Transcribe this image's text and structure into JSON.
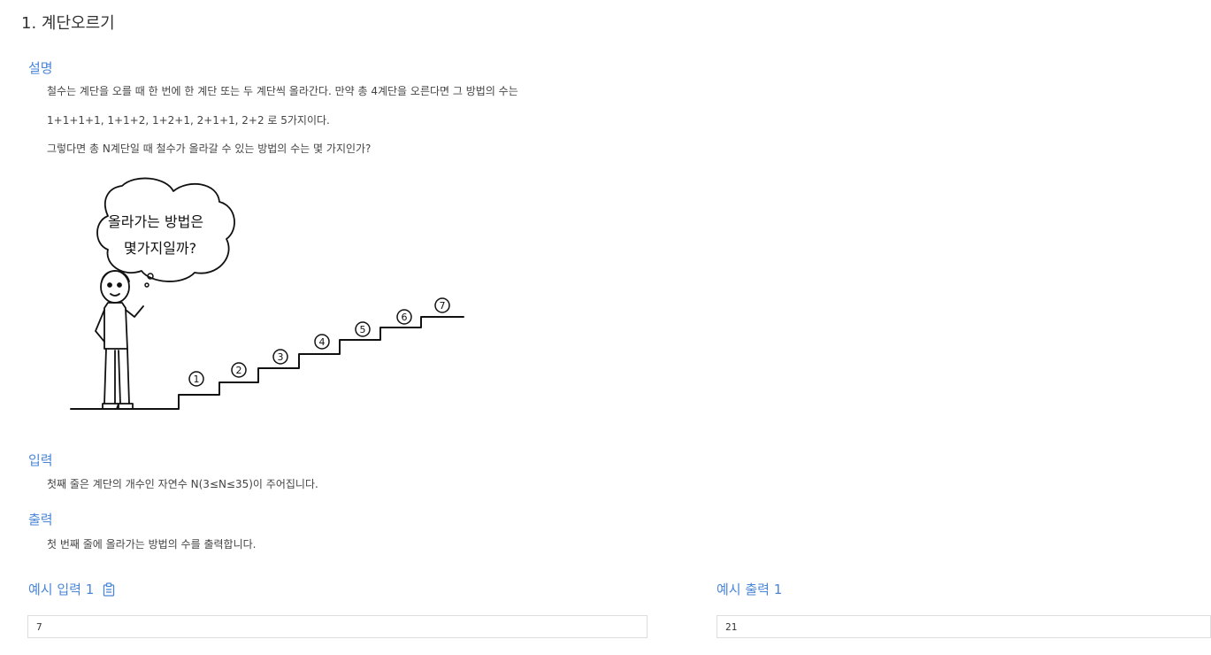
{
  "problem": {
    "title": "1. 계단오르기"
  },
  "description": {
    "heading": "설명",
    "lines": [
      "철수는 계단을 오를 때 한 번에 한 계단 또는 두 계단씩 올라간다. 만약 총 4계단을 오른다면 그 방법의 수는",
      "1+1+1+1, 1+1+2, 1+2+1, 2+1+1, 2+2 로 5가지이다.",
      "그렇다면 총 N계단일 때 철수가 올라갈 수 있는 방법의 수는 몇 가지인가?"
    ],
    "illustration": {
      "speech_bubble_line1": "올라가는 방법은",
      "speech_bubble_line2": "몇가지일까?",
      "step_numbers": [
        "1",
        "2",
        "3",
        "4",
        "5",
        "6",
        "7"
      ]
    }
  },
  "input": {
    "heading": "입력",
    "text": "첫째 줄은 계단의 개수인 자연수 N(3≤N≤35)이 주어집니다."
  },
  "output": {
    "heading": "출력",
    "text": "첫 번째 줄에 올라가는 방법의 수를 출력합니다."
  },
  "examples": {
    "input_label": "예시 입력 1",
    "input_value": "7",
    "output_label": "예시 출력 1",
    "output_value": "21",
    "copy_icon": "clipboard-icon"
  }
}
